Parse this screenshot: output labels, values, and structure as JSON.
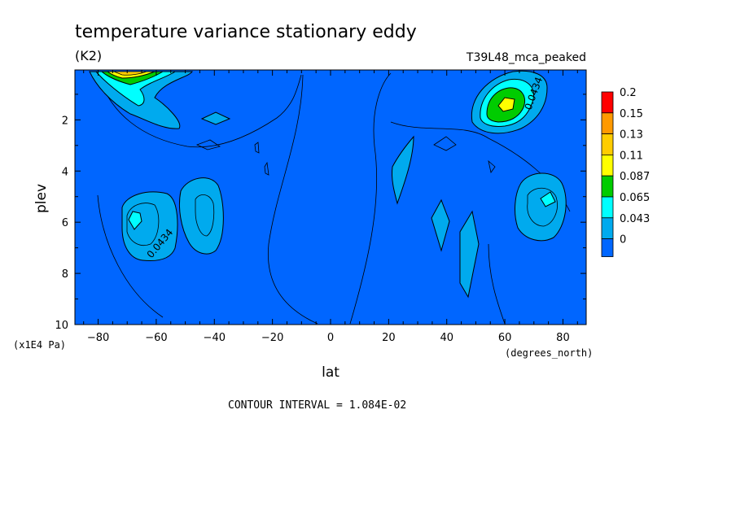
{
  "chart_data": {
    "type": "contour",
    "title": "temperature variance stationary eddy",
    "units": "(K2)",
    "dataset": "T39L48_mca_peaked",
    "xlabel": "lat",
    "x_units": "(degrees_north)",
    "ylabel": "plev",
    "y_units": "(x1E4 Pa)",
    "xlim": [
      -88,
      88
    ],
    "ylim": [
      10,
      0.05
    ],
    "x_ticks": [
      -80,
      -60,
      -40,
      -20,
      0,
      20,
      40,
      60,
      80
    ],
    "y_ticks": [
      2,
      4,
      6,
      8,
      10
    ],
    "footer": "CONTOUR INTERVAL = 1.084E-02",
    "legend": {
      "placement": "right",
      "levels": [
        "0.2",
        "0.15",
        "0.13",
        "0.11",
        "0.087",
        "0.065",
        "0.043",
        "0"
      ],
      "colors": [
        "#ff0000",
        "#ff9900",
        "#ffcc00",
        "#ffff00",
        "#00cc00",
        "#00ffff",
        "#00aaee",
        "#0066ff"
      ]
    },
    "contour_labels": [
      {
        "text": "0.0434",
        "lat": -62,
        "plev": 7.0
      },
      {
        "text": "0.0434",
        "lat": 68,
        "plev": 1.4
      }
    ],
    "features": [
      {
        "lat": -75,
        "plev": 0.2,
        "peak": 0.13
      },
      {
        "lat": 60,
        "plev": 1.6,
        "peak": 0.11
      },
      {
        "lat": -67,
        "plev": 6.0,
        "peak": 0.065
      },
      {
        "lat": -45,
        "plev": 5.8,
        "peak": 0.043
      },
      {
        "lat": 75,
        "plev": 5.3,
        "peak": 0.065
      },
      {
        "lat": 25,
        "plev": 4.2,
        "peak": 0.043
      },
      {
        "lat": 38,
        "plev": 6.5,
        "peak": 0.043
      },
      {
        "lat": 48,
        "plev": 7.6,
        "peak": 0.043
      }
    ]
  }
}
